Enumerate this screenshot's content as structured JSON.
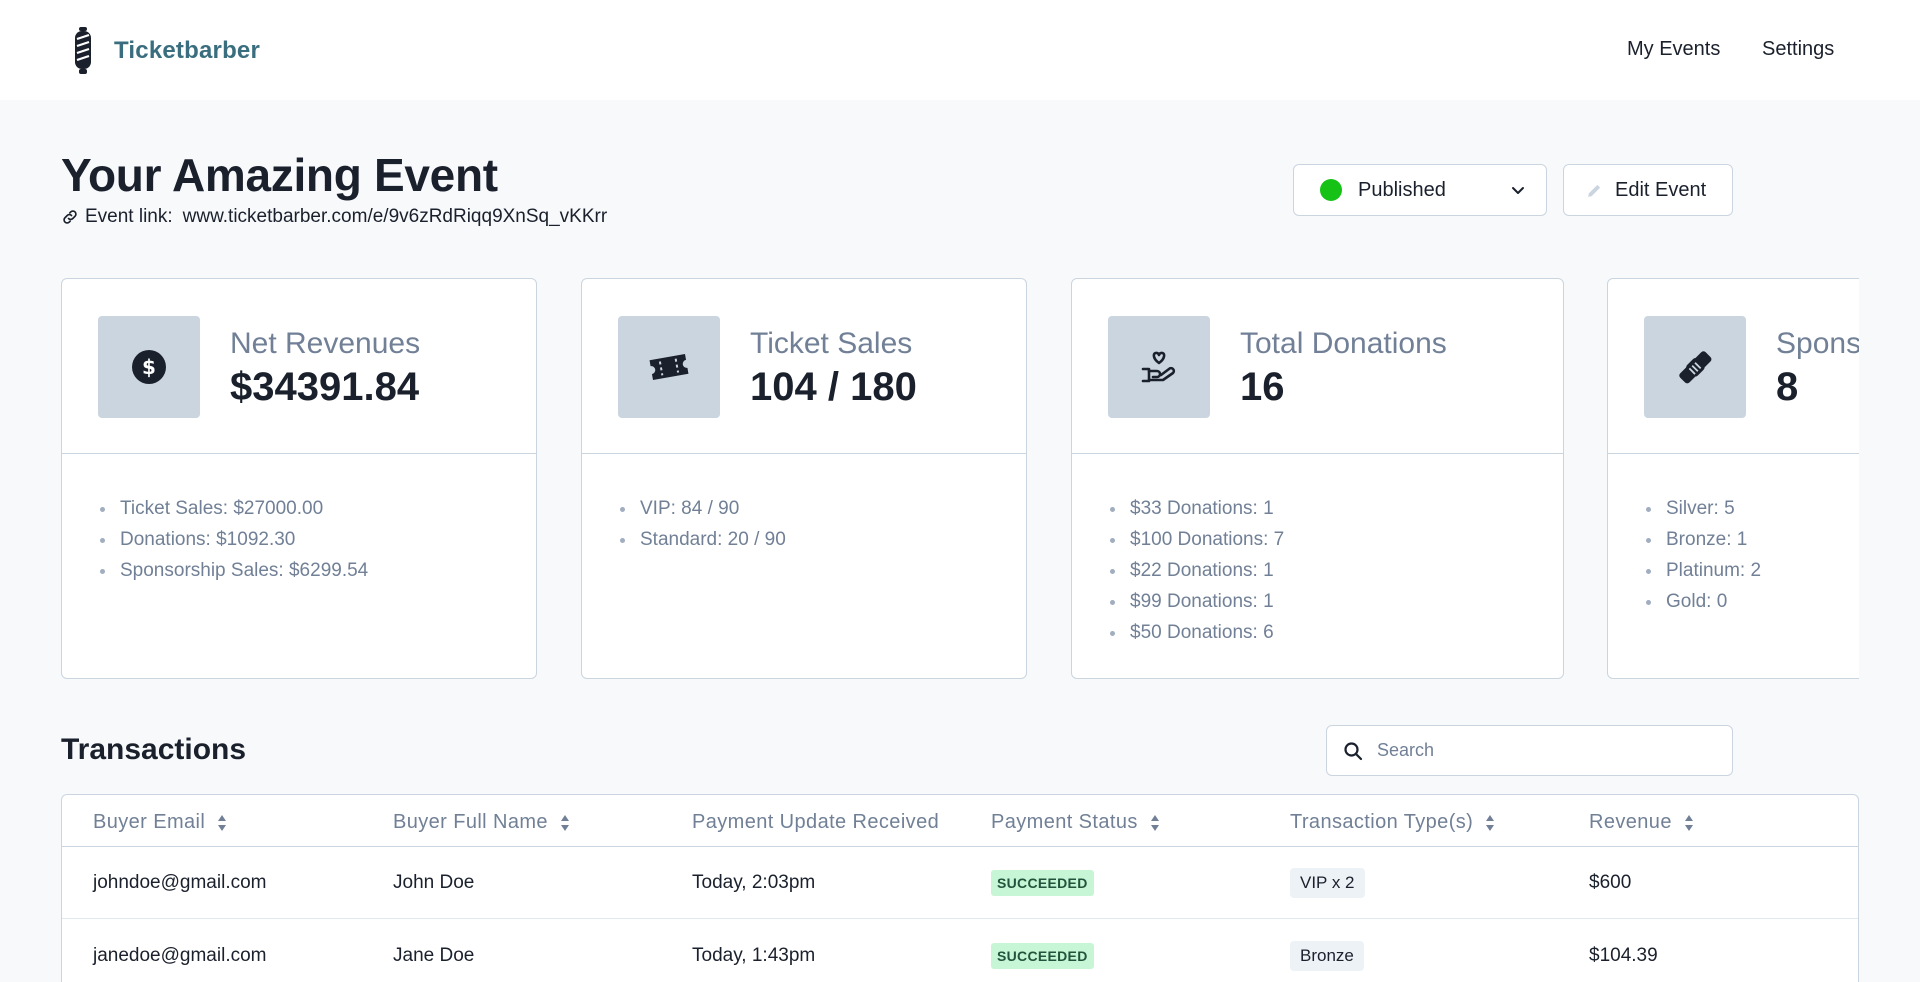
{
  "app": {
    "name": "Ticketbarber"
  },
  "nav": {
    "my_events": "My Events",
    "settings": "Settings"
  },
  "event": {
    "title": "Your Amazing Event",
    "link_label": "Event link:",
    "link_url": "www.ticketbarber.com/e/9v6zRdRiqq9XnSq_vKKrr",
    "status": "Published",
    "status_color": "#17c217",
    "edit_label": "Edit Event"
  },
  "cards": [
    {
      "icon": "dollar-icon",
      "title": "Net Revenues",
      "value": "$34391.84",
      "items": [
        "Ticket Sales: $27000.00",
        "Donations: $1092.30",
        "Sponsorship Sales: $6299.54"
      ]
    },
    {
      "icon": "ticket-icon",
      "title": "Ticket Sales",
      "value": "104 / 180",
      "items": [
        "VIP: 84 / 90",
        "Standard: 20 / 90"
      ]
    },
    {
      "icon": "donation-hand-icon",
      "title": "Total Donations",
      "value": "16",
      "items": [
        "$33 Donations: 1",
        "$100 Donations: 7",
        "$22 Donations: 1",
        "$99 Donations: 1",
        "$50 Donations: 6"
      ]
    },
    {
      "icon": "handshake-icon",
      "title": "Sponsors",
      "value": "8",
      "items": [
        "Silver: 5",
        "Bronze: 1",
        "Platinum: 2",
        "Gold: 0"
      ]
    }
  ],
  "transactions": {
    "title": "Transactions",
    "search_placeholder": "Search",
    "columns": [
      "Buyer Email",
      "Buyer Full Name",
      "Payment Update Received",
      "Payment Status",
      "Transaction Type(s)",
      "Revenue"
    ],
    "rows": [
      {
        "email": "johndoe@gmail.com",
        "name": "John Doe",
        "updated": "Today, 2:03pm",
        "status": "SUCCEEDED",
        "type": "VIP x 2",
        "revenue": "$600"
      },
      {
        "email": "janedoe@gmail.com",
        "name": "Jane Doe",
        "updated": "Today, 1:43pm",
        "status": "SUCCEEDED",
        "type": "Bronze",
        "revenue": "$104.39"
      }
    ]
  }
}
